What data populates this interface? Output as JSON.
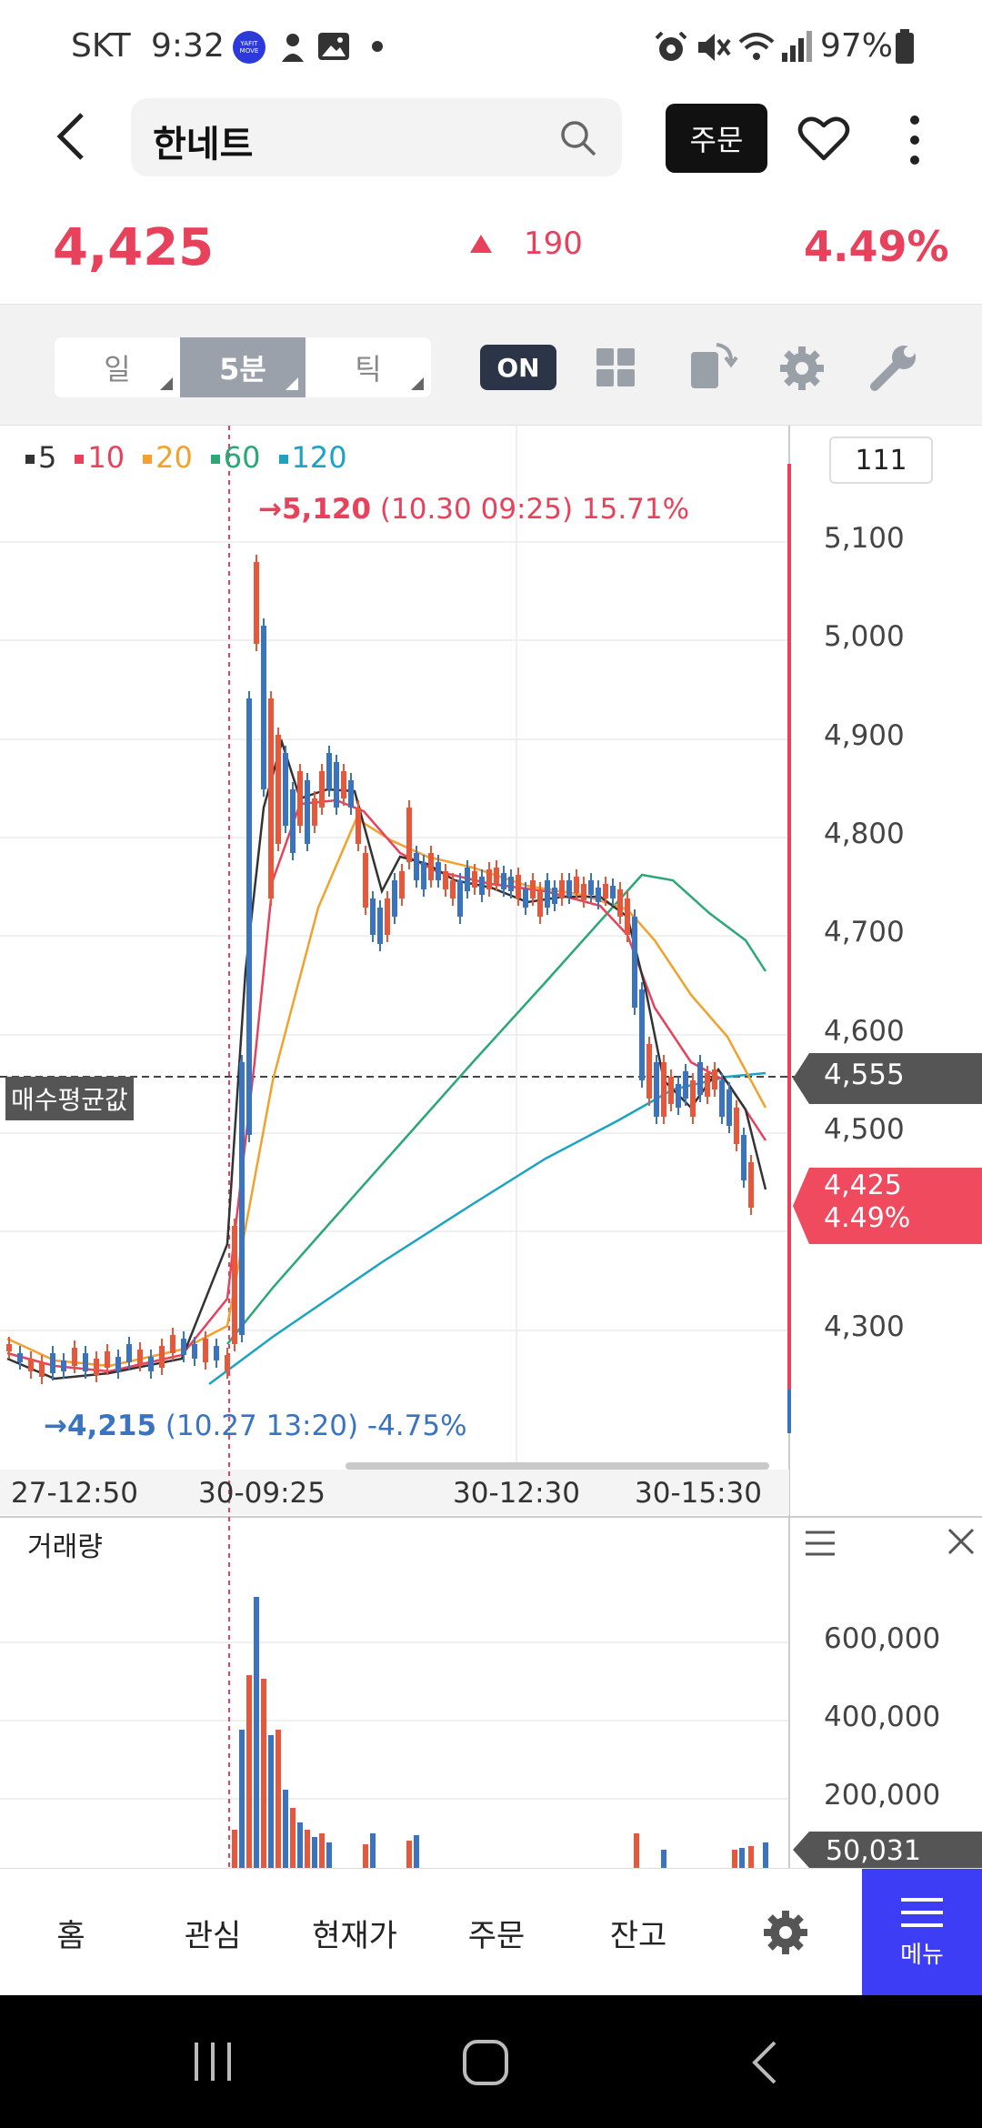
{
  "status_bar": {
    "carrier": "SKT",
    "time": "9:32",
    "app_badge": "YAFIT MOVE",
    "battery": "97%"
  },
  "header": {
    "stock_name": "한네트",
    "order_label": "주문"
  },
  "price": {
    "current": "4,425",
    "change": "190",
    "change_pct": "4.49%"
  },
  "toolbar": {
    "tabs": [
      "일",
      "5분",
      "틱"
    ],
    "active_tab": "5분",
    "toggle_label": "ON"
  },
  "chart": {
    "ma_legend": [
      {
        "label": "5",
        "color": "#333333"
      },
      {
        "label": "10",
        "color": "#e8415b"
      },
      {
        "label": "20",
        "color": "#f2a22c"
      },
      {
        "label": "60",
        "color": "#2aa876"
      },
      {
        "label": "120",
        "color": "#1aa3c3"
      }
    ],
    "count_box": "111",
    "high_annotation": {
      "arrow": "→",
      "price": "5,120",
      "detail": "(10.30 09:25) 15.71%"
    },
    "low_annotation": {
      "arrow": "→",
      "price": "4,215",
      "detail": "(10.27 13:20) -4.75%"
    },
    "avg_buy_label": "매수평균값",
    "avg_buy_price": "4,555",
    "current_tag_price": "4,425",
    "current_tag_pct": "4.49%",
    "y_ticks": [
      "5,100",
      "5,000",
      "4,900",
      "4,800",
      "4,700",
      "4,600",
      "4,500",
      "4,300"
    ],
    "x_ticks": [
      "27-12:50",
      "30-09:25",
      "30-12:30",
      "30-15:30"
    ],
    "volume_title": "거래량",
    "volume_ticks": [
      "600,000",
      "400,000",
      "200,000"
    ],
    "volume_current": "50,031",
    "colors": {
      "up": "#e8573a",
      "down": "#3a74c0",
      "accent": "#e8415b"
    }
  },
  "chart_data": {
    "type": "candlestick",
    "y_range": [
      4200,
      5150
    ],
    "y_axis_ticks": [
      4300,
      4500,
      4600,
      4700,
      4800,
      4900,
      5000,
      5100
    ],
    "high": 5120,
    "low": 4215,
    "avg_buy_price": 4555,
    "current_price": 4425,
    "volume_axis_ticks": [
      200000,
      400000,
      600000
    ],
    "volume_current": 50031
  },
  "bottom_nav": {
    "items": [
      "홈",
      "관심",
      "현재가",
      "주문",
      "잔고"
    ],
    "menu_label": "메뉴"
  }
}
